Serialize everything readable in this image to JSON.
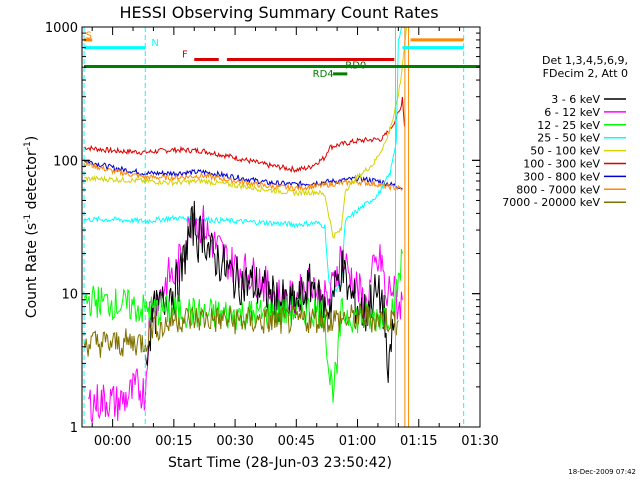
{
  "chart_data": {
    "type": "line",
    "title": "HESSI Observing Summary Count Rates",
    "xlabel": "Start Time (28-Jun-03 23:50:42)",
    "ylabel": "Count Rate (s",
    "ylabel_sup1": "-1",
    "ylabel_mid": " detector",
    "ylabel_sup2": "-1",
    "ylabel_end": ")",
    "y_scale": "log",
    "xlim": [
      -7.5,
      90
    ],
    "ylim": [
      1,
      1000
    ],
    "x_ticks": [
      {
        "value": 0,
        "label": "00:00"
      },
      {
        "value": 15,
        "label": "00:15"
      },
      {
        "value": 30,
        "label": "00:30"
      },
      {
        "value": 45,
        "label": "00:45"
      },
      {
        "value": 60,
        "label": "01:00"
      },
      {
        "value": 75,
        "label": "01:15"
      },
      {
        "value": 90,
        "label": "01:30"
      }
    ],
    "y_ticks": [
      {
        "value": 1,
        "label": "1"
      },
      {
        "value": 10,
        "label": "10"
      },
      {
        "value": 100,
        "label": "100"
      },
      {
        "value": 1000,
        "label": "1000"
      }
    ],
    "legend": {
      "placement": "right",
      "header": [
        "Det 1,3,4,5,6,9,",
        "FDecim 2, Att 0"
      ],
      "entries": [
        {
          "label": "3 - 6 keV",
          "color": "#000000"
        },
        {
          "label": "6 - 12 keV",
          "color": "#ff00ff"
        },
        {
          "label": "12 - 25 keV",
          "color": "#00ff00"
        },
        {
          "label": "25 - 50 keV",
          "color": "#00ffff"
        },
        {
          "label": "50 - 100 keV",
          "color": "#d4d400"
        },
        {
          "label": "100 - 300 keV",
          "color": "#dd0000"
        },
        {
          "label": "300 - 800 keV",
          "color": "#0000cc"
        },
        {
          "label": "800 - 7000 keV",
          "color": "#ff8800"
        },
        {
          "label": "7000 - 20000 keV",
          "color": "#807000"
        }
      ]
    },
    "series": [
      {
        "band": "100 - 300 keV",
        "color": "#dd0000",
        "x": [
          -7,
          0,
          8,
          15,
          22,
          30,
          38,
          45,
          48,
          52,
          53,
          55,
          60,
          66,
          68,
          70.5,
          71,
          71.5
        ],
        "y": [
          125,
          118,
          115,
          120,
          118,
          105,
          92,
          85,
          88,
          105,
          125,
          130,
          140,
          145,
          170,
          240,
          300,
          180
        ]
      },
      {
        "band": "300 - 800 keV",
        "color": "#0000cc",
        "x": [
          -7,
          0,
          8,
          15,
          22,
          30,
          38,
          45,
          50,
          55,
          60,
          65,
          68,
          70,
          71
        ],
        "y": [
          100,
          88,
          80,
          80,
          82,
          75,
          68,
          66,
          68,
          70,
          73,
          70,
          66,
          64,
          62
        ]
      },
      {
        "band": "800 - 7000 keV",
        "color": "#ff8800",
        "x": [
          -7,
          0,
          8,
          15,
          22,
          30,
          38,
          45,
          50,
          55,
          60,
          65,
          68,
          70,
          71
        ],
        "y": [
          95,
          83,
          75,
          74,
          77,
          70,
          64,
          62,
          64,
          67,
          69,
          66,
          63,
          62,
          61
        ]
      },
      {
        "band": "50 - 100 keV",
        "color": "#d4d400",
        "x": [
          -7,
          0,
          8,
          15,
          22,
          30,
          38,
          45,
          50,
          52,
          54,
          56,
          57,
          60,
          64,
          67,
          69,
          70.5,
          71.2,
          72
        ],
        "y": [
          73,
          72,
          70,
          68,
          70,
          65,
          60,
          57,
          58,
          55,
          27,
          30,
          60,
          75,
          95,
          140,
          220,
          380,
          600,
          1000
        ]
      },
      {
        "band": "25 - 50 keV",
        "color": "#00ffff",
        "x": [
          -7,
          0,
          8,
          15,
          22,
          30,
          38,
          45,
          50,
          52,
          53,
          54,
          56,
          57,
          60,
          65,
          68,
          69.5,
          70,
          71,
          71.5
        ],
        "y": [
          36,
          36,
          35,
          37,
          36,
          35,
          34,
          33,
          34,
          32,
          12,
          10,
          12,
          35,
          42,
          55,
          80,
          140,
          800,
          1000,
          1000
        ]
      },
      {
        "band": "6 - 12 keV",
        "color": "#ff00ff",
        "x": [
          -6,
          -1,
          1,
          4,
          6,
          8,
          9,
          9.5,
          10,
          12,
          14,
          15,
          17,
          18,
          20,
          21,
          22,
          24,
          26,
          28,
          30,
          32,
          34,
          36,
          38,
          40,
          42,
          44,
          46,
          48,
          49,
          51,
          53,
          55,
          56,
          58,
          60,
          62,
          64,
          66,
          67,
          68,
          69,
          70,
          71
        ],
        "y": [
          1.5,
          1.6,
          1.5,
          1.7,
          2,
          1.8,
          7,
          8,
          9,
          10,
          14,
          13,
          20,
          25,
          45,
          30,
          35,
          25,
          22,
          18,
          16,
          15,
          14,
          13,
          11,
          10,
          9,
          9,
          10,
          12,
          13,
          9,
          9,
          15,
          20,
          14,
          11,
          8,
          15,
          18,
          8,
          12,
          10,
          8,
          9
        ]
      },
      {
        "band": "3 - 6 keV",
        "color": "#000000",
        "x": [
          8,
          9,
          10,
          12,
          14,
          15,
          17,
          18,
          20,
          21,
          22,
          24,
          26,
          28,
          30,
          32,
          34,
          36,
          38,
          40,
          42,
          44,
          46,
          48,
          49,
          51,
          53,
          55,
          56,
          58,
          60,
          62,
          64,
          66,
          67,
          67.5,
          68,
          69
        ],
        "y": [
          3,
          5,
          7,
          8,
          11,
          10,
          15,
          22,
          35,
          25,
          30,
          20,
          18,
          15,
          13,
          12,
          12,
          11,
          10,
          9,
          8.5,
          8,
          9,
          11,
          12,
          8,
          8,
          12,
          16,
          10,
          8,
          7,
          10,
          9,
          5,
          1.5,
          4,
          6
        ]
      },
      {
        "band": "12 - 25 keV",
        "color": "#00ff00",
        "x": [
          -7,
          0,
          5,
          8,
          10,
          15,
          22,
          30,
          38,
          45,
          50,
          52,
          53,
          54,
          55,
          56,
          58,
          60,
          64,
          66,
          68,
          69.5,
          70.5,
          71
        ],
        "y": [
          9,
          8.5,
          8,
          7.5,
          7.5,
          7.5,
          7,
          7,
          7,
          7.5,
          7.5,
          7,
          2.5,
          2,
          2.7,
          7,
          7,
          6.5,
          6.5,
          7,
          7,
          10,
          15,
          20
        ]
      },
      {
        "band": "7000 - 20000 keV",
        "color": "#807000",
        "x": [
          -7,
          0,
          5,
          8,
          10,
          12,
          15,
          22,
          30,
          38,
          45,
          50,
          55,
          60,
          64,
          68,
          70
        ],
        "y": [
          4.3,
          4.2,
          4.3,
          4.4,
          6,
          5.5,
          6.5,
          6.5,
          6.3,
          6.2,
          6.3,
          6.5,
          6.4,
          6.6,
          6.5,
          6.4,
          6.3
        ]
      }
    ],
    "vertical_markers": [
      {
        "x": -7,
        "color": "#00ffff",
        "style": "dash"
      },
      {
        "x": 8,
        "color": "#00ffff",
        "style": "dash"
      },
      {
        "x": 69.3,
        "color": "#00ffff",
        "style": "solid"
      },
      {
        "x": 71.6,
        "color": "#ff8800",
        "style": "solid"
      },
      {
        "x": 72.5,
        "color": "#ff8800",
        "style": "solid"
      },
      {
        "x": 86,
        "color": "#00ffff",
        "style": "dash"
      }
    ],
    "flag_bars": [
      {
        "label": "S",
        "color": "#ff8800",
        "x": [
          -7,
          -5
        ],
        "y": 800,
        "label_x": -6.6,
        "label_y": 820
      },
      {
        "label": "",
        "color": "#ff8800",
        "x": [
          73,
          86
        ],
        "y": 800
      },
      {
        "label": "N",
        "color": "#00ffff",
        "x": [
          -7,
          8
        ],
        "y": 700,
        "label_x": 9.5,
        "label_y": 720
      },
      {
        "label": "",
        "color": "#00ffff",
        "x": [
          71,
          86
        ],
        "y": 700
      },
      {
        "label": "F",
        "color": "#dd0000",
        "x": [
          20,
          26
        ],
        "y": 570,
        "label_x": 17,
        "label_y": 590
      },
      {
        "label": "",
        "color": "#dd0000",
        "x": [
          28,
          69
        ],
        "y": 570
      },
      {
        "label": "RD0",
        "color": "#006600",
        "x": [
          56,
          57
        ],
        "y": 0,
        "label_x": 57,
        "label_y": 490
      },
      {
        "label": "",
        "color": "#008000",
        "x": [
          -7,
          90
        ],
        "y": 505
      },
      {
        "label": "RD4",
        "color": "#008000",
        "x": [
          54,
          57.5
        ],
        "y": 445,
        "label_x": 49,
        "label_y": 420
      }
    ]
  },
  "timestamp": "18-Dec-2009 07:42"
}
